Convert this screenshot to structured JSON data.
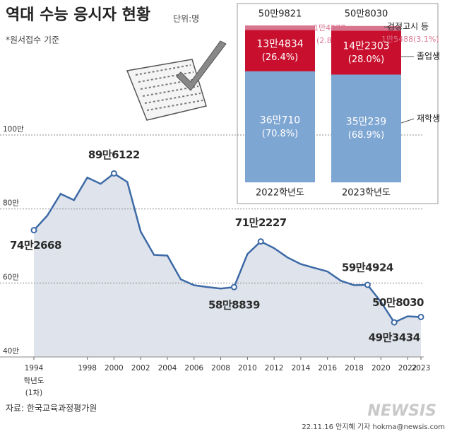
{
  "header": {
    "title": "역대 수능 응시자 현황",
    "unit": "단위:명",
    "note": "*원서접수 기준"
  },
  "chart_data": [
    {
      "type": "line",
      "x": [
        1994,
        1995,
        1996,
        1997,
        1998,
        1999,
        2000,
        2001,
        2002,
        2003,
        2004,
        2005,
        2006,
        2007,
        2008,
        2009,
        2010,
        2011,
        2012,
        2013,
        2014,
        2015,
        2016,
        2017,
        2018,
        2019,
        2020,
        2021,
        2022,
        2023
      ],
      "values": [
        74.2668,
        78.2,
        84.1,
        82.4,
        88.5,
        86.8,
        89.6122,
        87.3,
        73.9,
        67.6,
        67.4,
        61.0,
        59.4,
        58.9,
        58.5,
        58.8839,
        67.8,
        71.2227,
        69.4,
        66.9,
        65.1,
        64.1,
        63.1,
        60.6,
        59.4,
        59.4924,
        54.9,
        49.3434,
        50.9821,
        50.803
      ],
      "value_labels": [
        "74만2668",
        null,
        null,
        null,
        null,
        null,
        "89만6122",
        null,
        null,
        null,
        null,
        null,
        null,
        null,
        null,
        "58만8839",
        null,
        "71만2227",
        null,
        null,
        null,
        null,
        null,
        null,
        null,
        "59만4924",
        null,
        "49만3434",
        null,
        "50만8030"
      ],
      "color": "#3d6aa6",
      "area_color": "#dfe4ec",
      "xlim": [
        1994,
        2023
      ],
      "xticks": [
        1994,
        1998,
        2000,
        2002,
        2004,
        2006,
        2008,
        2010,
        2012,
        2014,
        2016,
        2018,
        2020,
        2022,
        2023
      ],
      "xtick_sub": [
        "학년도",
        "(1차)"
      ],
      "ylim": [
        40,
        100
      ],
      "yticks": [
        {
          "value": 100,
          "label": "100만"
        },
        {
          "value": 80,
          "label": "80만"
        },
        {
          "value": 60,
          "label": "60만"
        },
        {
          "value": 40,
          "label": "40만"
        }
      ],
      "grid": true
    },
    {
      "type": "stacked_bar",
      "categories": [
        "2022학년도",
        "2023학년도"
      ],
      "series": [
        {
          "name": "재학생",
          "color": "#7ea6d3",
          "values": [
            36.071,
            35.0239
          ],
          "value_labels": [
            "36만710",
            "35만239"
          ],
          "percent_labels": [
            "(70.8%)",
            "(68.9%)"
          ]
        },
        {
          "name": "졸업생",
          "color": "#c8102e",
          "values": [
            13.4834,
            14.2303
          ],
          "value_labels": [
            "13만4834",
            "14만2303"
          ],
          "percent_labels": [
            "(26.4%)",
            "(28.0%)"
          ]
        },
        {
          "name": "검정고시 등",
          "color": "#d9768f",
          "values": [
            1.4277,
            1.5488
          ],
          "value_labels": [
            "1만4277",
            "1만5488"
          ],
          "percent_labels": [
            "(2.8%)",
            "(3.1%)"
          ]
        }
      ],
      "totals": [
        50.9821,
        50.803
      ],
      "total_labels": [
        "50만9821",
        "50만8030"
      ]
    }
  ],
  "source": "자료: 한국교육과정평가원",
  "credit": "22.11.16 안지혜 기자 hokma@newsis.com",
  "logo": "NEWSIS"
}
